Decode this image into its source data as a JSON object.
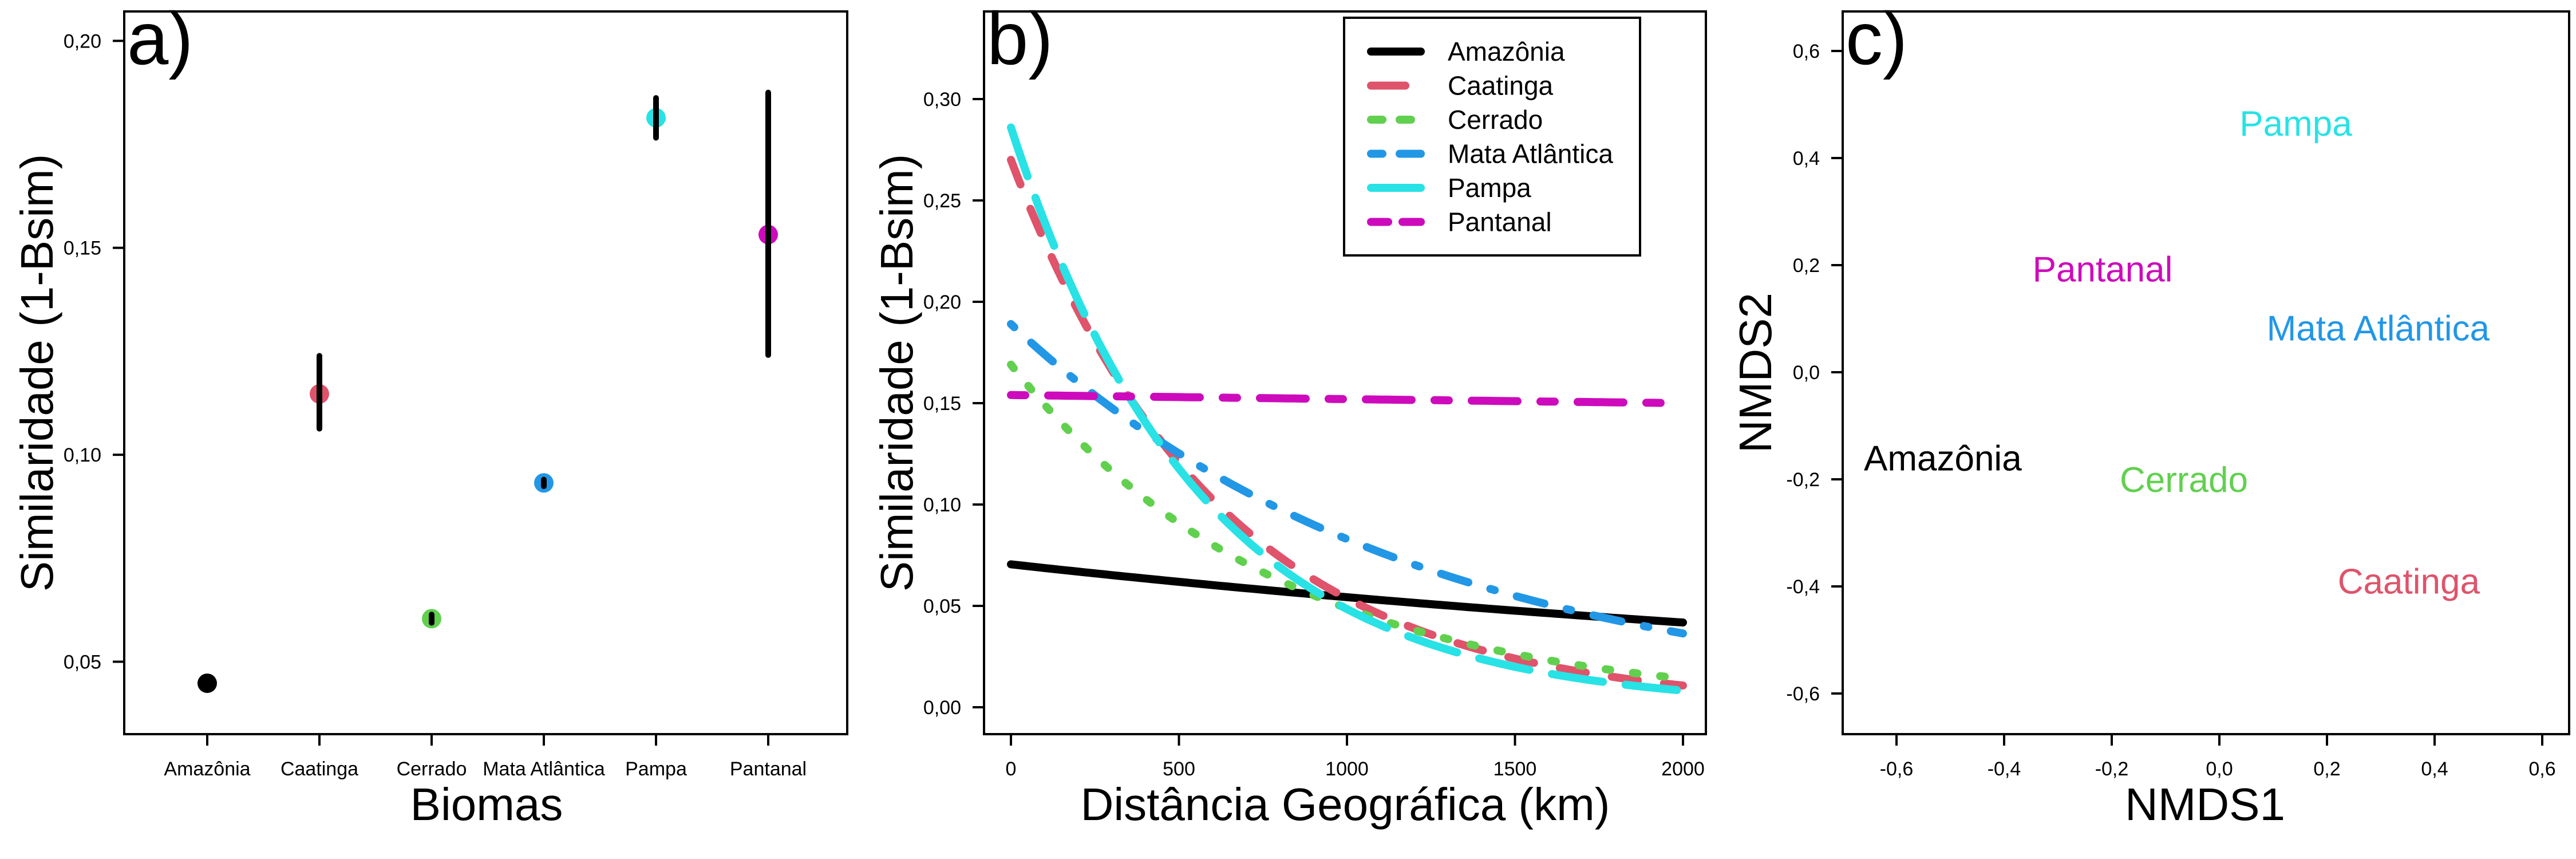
{
  "chart_data": [
    {
      "panel": "a)",
      "type": "scatter",
      "title": "",
      "xlabel": "Biomas",
      "ylabel": "Similaridade (1-Bsim)",
      "categories": [
        "Amazônia",
        "Caatinga",
        "Cerrado",
        "Mata Atlântica",
        "Pampa",
        "Pantanal"
      ],
      "values": [
        0.0448,
        0.1147,
        0.0604,
        0.0932,
        0.1814,
        0.1532
      ],
      "error_low": [
        0.0448,
        0.1063,
        0.0594,
        0.0924,
        0.1766,
        0.1241
      ],
      "error_high": [
        0.0448,
        0.1239,
        0.0614,
        0.094,
        0.1862,
        0.1875
      ],
      "colors": [
        "#000000",
        "#DF536B",
        "#61D04F",
        "#2297E6",
        "#28E2E5",
        "#CD0BBC"
      ],
      "ylim": [
        0.0325,
        0.2071
      ],
      "yticks": [
        0.05,
        0.1,
        0.15,
        0.2
      ],
      "ytick_labels": [
        "0,05",
        "0,10",
        "0,15",
        "0,20"
      ],
      "grid": false
    },
    {
      "panel": "b)",
      "type": "line",
      "title": "",
      "xlabel": "Distância Geográfica (km)",
      "ylabel": "Similaridade (1-Bsim)",
      "x": [
        0,
        100,
        200,
        300,
        400,
        500,
        600,
        700,
        800,
        900,
        1000,
        1100,
        1200,
        1300,
        1400,
        1500,
        1600,
        1700,
        1800,
        1900,
        2000
      ],
      "series": [
        {
          "name": "Amazônia",
          "color": "#000000",
          "style": "solid",
          "start": 0.0705,
          "end": 0.0418
        },
        {
          "name": "Caatinga",
          "color": "#DF536B",
          "style": "dashed",
          "start": 0.27,
          "end": 0.0107
        },
        {
          "name": "Cerrado",
          "color": "#61D04F",
          "style": "dotted",
          "start": 0.169,
          "end": 0.0141
        },
        {
          "name": "Mata Atlântica",
          "color": "#2297E6",
          "style": "dotdash",
          "start": 0.189,
          "end": 0.0364
        },
        {
          "name": "Pampa",
          "color": "#28E2E5",
          "style": "longdash",
          "start": 0.286,
          "end": 0.0082
        },
        {
          "name": "Pantanal",
          "color": "#CD0BBC",
          "style": "twodash",
          "start": 0.154,
          "end": 0.15
        }
      ],
      "curve_model": "exponential decay y = start * (end/start)^(x/2000)",
      "xlim": [
        -80,
        2060
      ],
      "ylim": [
        -0.013,
        0.343
      ],
      "xticks": [
        0,
        500,
        1000,
        1500,
        2000
      ],
      "xtick_labels": [
        "0",
        "500",
        "1000",
        "1500",
        "2000"
      ],
      "yticks": [
        0.0,
        0.05,
        0.1,
        0.15,
        0.2,
        0.25,
        0.3
      ],
      "ytick_labels": [
        "0,00",
        "0,05",
        "0,10",
        "0,15",
        "0,20",
        "0,25",
        "0,30"
      ],
      "legend": {
        "placement": "top-right",
        "entries": [
          "Amazônia",
          "Caatinga",
          "Cerrado",
          "Mata Atlântica",
          "Pampa",
          "Pantanal"
        ]
      },
      "grid": false
    },
    {
      "panel": "c)",
      "type": "scatter",
      "title": "",
      "xlabel": "NMDS1",
      "ylabel": "NMDS2",
      "points": [
        {
          "label": "Amazônia",
          "x": -0.514,
          "y": -0.16,
          "color": "#000000"
        },
        {
          "label": "Caatinga",
          "x": 0.352,
          "y": -0.39,
          "color": "#DF536B"
        },
        {
          "label": "Cerrado",
          "x": -0.066,
          "y": -0.2,
          "color": "#61D04F"
        },
        {
          "label": "Mata Atlântica",
          "x": 0.295,
          "y": 0.083,
          "color": "#2297E6"
        },
        {
          "label": "Pampa",
          "x": 0.142,
          "y": 0.465,
          "color": "#28E2E5"
        },
        {
          "label": "Pantanal",
          "x": -0.217,
          "y": 0.193,
          "color": "#CD0BBC"
        }
      ],
      "xlim": [
        -0.703,
        0.647
      ],
      "ylim": [
        -0.677,
        0.673
      ],
      "xticks": [
        -0.6,
        -0.4,
        -0.2,
        0.0,
        0.2,
        0.4,
        0.6
      ],
      "xtick_labels": [
        "-0,6",
        "-0,4",
        "-0,2",
        "0,0",
        "0,2",
        "0,4",
        "0,6"
      ],
      "yticks": [
        -0.6,
        -0.4,
        -0.2,
        0.0,
        0.2,
        0.4,
        0.6
      ],
      "ytick_labels": [
        "-0,6",
        "-0,4",
        "-0,2",
        "0,0",
        "0,2",
        "0,4",
        "0,6"
      ],
      "grid": false
    }
  ]
}
